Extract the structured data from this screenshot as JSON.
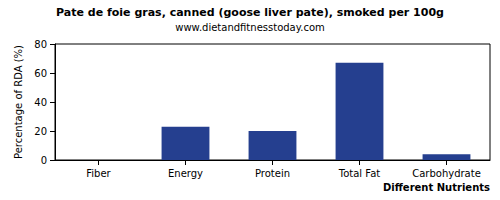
{
  "chart_data": {
    "type": "bar",
    "title": "Pate de foie gras, canned (goose liver pate), smoked per 100g",
    "subtitle": "www.dietandfitnesstoday.com",
    "xlabel": "Different Nutrients",
    "ylabel": "Percentage of RDA (%)",
    "categories": [
      "Fiber",
      "Energy",
      "Protein",
      "Total Fat",
      "Carbohydrate"
    ],
    "values": [
      0,
      23,
      20,
      67,
      4
    ],
    "color": "#253f8f",
    "ylim": [
      0,
      80
    ],
    "yticks": [
      0,
      20,
      40,
      60,
      80
    ],
    "grid": false
  }
}
